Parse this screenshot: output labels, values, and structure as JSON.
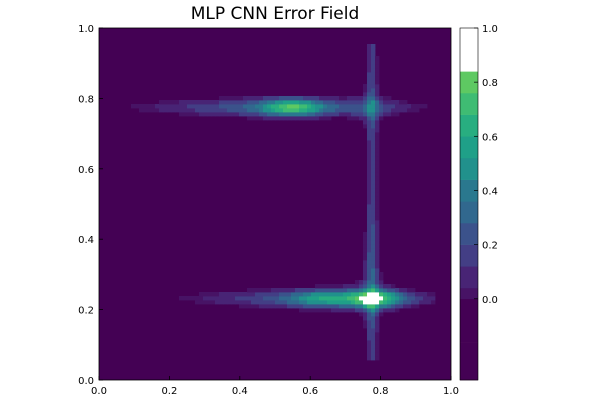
{
  "chart_data": {
    "type": "heatmap",
    "title": "MLP CNN Error Field",
    "xlabel": "",
    "ylabel": "",
    "xlim": [
      0.0,
      1.0
    ],
    "ylim": [
      0.0,
      1.0
    ],
    "x_ticks": [
      "0.0",
      "0.2",
      "0.4",
      "0.6",
      "0.8",
      "1.0"
    ],
    "y_ticks": [
      "0.0",
      "0.2",
      "0.4",
      "0.6",
      "0.8",
      "1.0"
    ],
    "grid": false,
    "colorbar": {
      "range": [
        -0.3,
        1.0
      ],
      "ticks": [
        "0.0",
        "0.2",
        "0.4",
        "0.6",
        "0.8",
        "1.0"
      ],
      "levels": [
        {
          "lo": -0.3,
          "hi": -0.16,
          "color": "#440154"
        },
        {
          "lo": -0.16,
          "hi": 0.0,
          "color": "#440154"
        },
        {
          "lo": 0.0,
          "hi": 0.04,
          "color": "#471365"
        },
        {
          "lo": 0.04,
          "hi": 0.12,
          "color": "#482475"
        },
        {
          "lo": 0.12,
          "hi": 0.2,
          "color": "#433e85"
        },
        {
          "lo": 0.2,
          "hi": 0.28,
          "color": "#3b528b"
        },
        {
          "lo": 0.28,
          "hi": 0.36,
          "color": "#31688e"
        },
        {
          "lo": 0.36,
          "hi": 0.44,
          "color": "#2a788e"
        },
        {
          "lo": 0.44,
          "hi": 0.52,
          "color": "#21918c"
        },
        {
          "lo": 0.52,
          "hi": 0.6,
          "color": "#1fa088"
        },
        {
          "lo": 0.6,
          "hi": 0.68,
          "color": "#28ae80"
        },
        {
          "lo": 0.68,
          "hi": 0.76,
          "color": "#3fbc73"
        },
        {
          "lo": 0.76,
          "hi": 0.84,
          "color": "#5ec962"
        },
        {
          "lo": 0.84,
          "hi": 1.0,
          "color": "#ffffff"
        }
      ]
    },
    "features": {
      "upper_band_y": 0.775,
      "lower_band_y": 0.232,
      "vertical_band_x": 0.775,
      "hotspots": [
        {
          "x": 0.55,
          "y": 0.775,
          "value": 0.76
        },
        {
          "x": 0.78,
          "y": 0.232,
          "value": 0.76
        },
        {
          "x": 0.63,
          "y": 0.232,
          "value": 0.55
        }
      ]
    }
  }
}
